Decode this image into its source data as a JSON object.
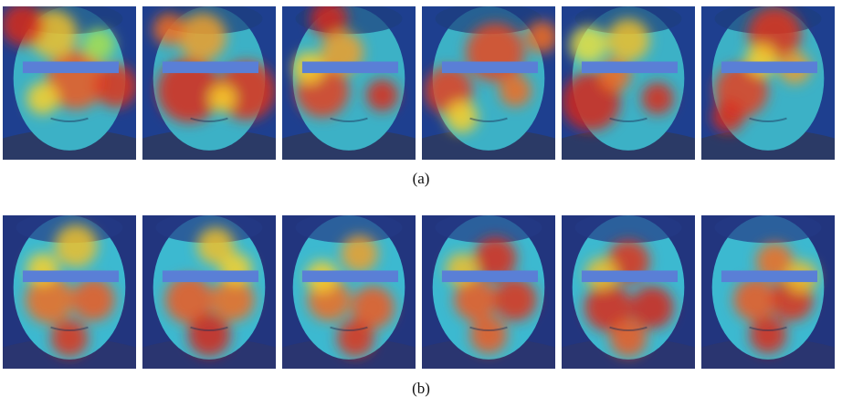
{
  "figure": {
    "panels": [
      {
        "caption": "(a)",
        "background": "#1e3f8f",
        "hair": "#1d3f7d",
        "skin": "#3cb1c6",
        "shirt": "#2b3a66",
        "tiles": [
          {
            "spots": [
              [
                0.55,
                0.48,
                0.22,
                "#f05a1e"
              ],
              [
                0.85,
                0.52,
                0.16,
                "#e0321b"
              ],
              [
                0.38,
                0.18,
                0.18,
                "#f0c02a"
              ],
              [
                0.15,
                0.12,
                0.16,
                "#d8281a"
              ],
              [
                0.3,
                0.6,
                0.12,
                "#f9d12b"
              ],
              [
                0.72,
                0.25,
                0.12,
                "#a9e04c"
              ]
            ]
          },
          {
            "spots": [
              [
                0.35,
                0.55,
                0.24,
                "#dc2a1b"
              ],
              [
                0.78,
                0.55,
                0.22,
                "#e0321b"
              ],
              [
                0.45,
                0.2,
                0.18,
                "#f0a028"
              ],
              [
                0.2,
                0.15,
                0.12,
                "#f36c20"
              ],
              [
                0.6,
                0.6,
                0.1,
                "#f9d12b"
              ]
            ]
          },
          {
            "spots": [
              [
                0.3,
                0.55,
                0.2,
                "#e54020"
              ],
              [
                0.75,
                0.58,
                0.12,
                "#dc2a1b"
              ],
              [
                0.35,
                0.08,
                0.14,
                "#d62419"
              ],
              [
                0.45,
                0.3,
                0.16,
                "#f0a028"
              ],
              [
                0.2,
                0.4,
                0.12,
                "#f9d12b"
              ]
            ]
          },
          {
            "spots": [
              [
                0.2,
                0.55,
                0.18,
                "#e54020"
              ],
              [
                0.55,
                0.3,
                0.22,
                "#e84820"
              ],
              [
                0.7,
                0.55,
                0.12,
                "#f36c20"
              ],
              [
                0.9,
                0.2,
                0.12,
                "#f36c20"
              ],
              [
                0.3,
                0.72,
                0.12,
                "#f9d12b"
              ]
            ]
          },
          {
            "spots": [
              [
                0.22,
                0.62,
                0.22,
                "#d62419"
              ],
              [
                0.72,
                0.6,
                0.12,
                "#dc2a1b"
              ],
              [
                0.5,
                0.22,
                0.16,
                "#f0c02a"
              ],
              [
                0.2,
                0.25,
                0.14,
                "#e8e040"
              ],
              [
                0.4,
                0.45,
                0.12,
                "#f36c20"
              ]
            ]
          },
          {
            "spots": [
              [
                0.55,
                0.18,
                0.2,
                "#e0321b"
              ],
              [
                0.3,
                0.55,
                0.2,
                "#e54020"
              ],
              [
                0.2,
                0.72,
                0.12,
                "#dc2a1b"
              ],
              [
                0.7,
                0.4,
                0.12,
                "#f0a028"
              ],
              [
                0.45,
                0.35,
                0.12,
                "#f9d12b"
              ]
            ]
          }
        ]
      },
      {
        "caption": "(b)",
        "background": "#22357e",
        "hair": "#233a86",
        "skin": "#3cb9d0",
        "shirt": "#2a3570",
        "tiles": [
          {
            "spots": [
              [
                0.35,
                0.55,
                0.18,
                "#f36c20"
              ],
              [
                0.68,
                0.55,
                0.16,
                "#f05a1e"
              ],
              [
                0.5,
                0.8,
                0.14,
                "#e0321b"
              ],
              [
                0.55,
                0.2,
                0.16,
                "#f0c02a"
              ],
              [
                0.3,
                0.35,
                0.12,
                "#f9d12b"
              ]
            ]
          },
          {
            "spots": [
              [
                0.35,
                0.55,
                0.18,
                "#f05a1e"
              ],
              [
                0.68,
                0.55,
                0.16,
                "#f36c20"
              ],
              [
                0.5,
                0.78,
                0.16,
                "#d62419"
              ],
              [
                0.55,
                0.2,
                0.14,
                "#f0c02a"
              ],
              [
                0.7,
                0.35,
                0.12,
                "#f9d12b"
              ]
            ]
          },
          {
            "spots": [
              [
                0.35,
                0.55,
                0.16,
                "#f36c20"
              ],
              [
                0.68,
                0.6,
                0.16,
                "#f05a1e"
              ],
              [
                0.55,
                0.8,
                0.14,
                "#e0321b"
              ],
              [
                0.58,
                0.25,
                0.14,
                "#f0a028"
              ],
              [
                0.3,
                0.4,
                0.12,
                "#f9d12b"
              ]
            ]
          },
          {
            "spots": [
              [
                0.4,
                0.55,
                0.16,
                "#f05a1e"
              ],
              [
                0.7,
                0.55,
                0.16,
                "#e0321b"
              ],
              [
                0.55,
                0.28,
                0.16,
                "#dc2a1b"
              ],
              [
                0.5,
                0.78,
                0.14,
                "#f05a1e"
              ],
              [
                0.3,
                0.35,
                0.12,
                "#f0c02a"
              ]
            ]
          },
          {
            "spots": [
              [
                0.35,
                0.6,
                0.18,
                "#dc2a1b"
              ],
              [
                0.68,
                0.6,
                0.16,
                "#d62419"
              ],
              [
                0.5,
                0.3,
                0.16,
                "#e0321b"
              ],
              [
                0.5,
                0.8,
                0.14,
                "#f05a1e"
              ],
              [
                0.3,
                0.38,
                0.12,
                "#f0c02a"
              ]
            ]
          },
          {
            "spots": [
              [
                0.4,
                0.55,
                0.16,
                "#f05a1e"
              ],
              [
                0.68,
                0.55,
                0.16,
                "#e0321b"
              ],
              [
                0.55,
                0.3,
                0.14,
                "#f36c20"
              ],
              [
                0.5,
                0.78,
                0.14,
                "#dc2a1b"
              ],
              [
                0.75,
                0.4,
                0.12,
                "#f0c02a"
              ]
            ]
          }
        ]
      }
    ],
    "censor_bar_color": "#5a7fd6"
  }
}
